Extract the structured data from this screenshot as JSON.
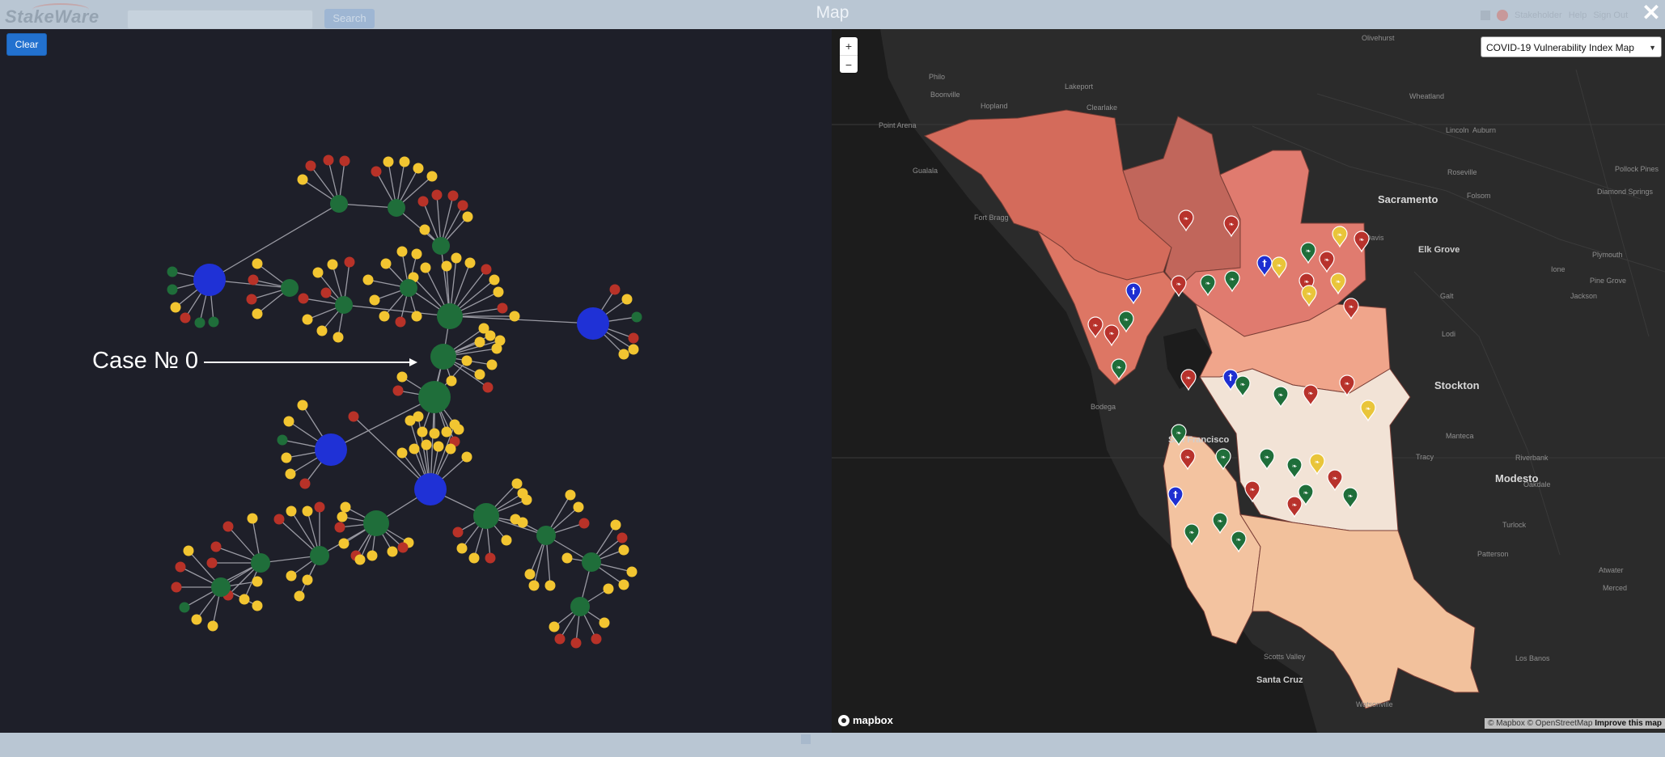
{
  "app": {
    "logo": "StakeWare",
    "search_button": "Search"
  },
  "header": {
    "user_menu": "Stakeholder",
    "help": "Help",
    "sign_out": "Sign Out"
  },
  "modal": {
    "title": "Map",
    "close_icon": "close-x-icon"
  },
  "graph": {
    "clear_label": "Clear",
    "case_label": "Case № 0",
    "colors": {
      "hub": "#1f31d6",
      "green": "#1f6e3a",
      "red": "#b83228",
      "yellow": "#f2c531",
      "edge": "#9a9aa3"
    }
  },
  "map": {
    "layer_select": "COVID-19 Vulnerability Index Map",
    "zoom_in": "+",
    "zoom_out": "−",
    "mapbox_logo": "mapbox",
    "attribution": {
      "mapbox": "© Mapbox",
      "osm": "© OpenStreetMap",
      "improve": "Improve this map"
    },
    "cities_major": [
      "Sacramento",
      "Stockton",
      "Modesto",
      "Elk Grove",
      "San Francisco",
      "Santa Cruz"
    ],
    "cities_minor": [
      "Olivehurst",
      "Philo",
      "Boonville",
      "Lakeport",
      "Hopland",
      "Clearlake",
      "Wheatland",
      "Lincoln",
      "Auburn",
      "Point Arena",
      "Roseville",
      "Pollock Pines",
      "Folsom",
      "Diamond Springs",
      "Davis",
      "Plymouth",
      "Pine Grove",
      "Ione",
      "Jackson",
      "Galt",
      "Lodi",
      "Manteca",
      "Tracy",
      "Riverbank",
      "Oakdale",
      "Turlock",
      "Patterson",
      "Atwater",
      "Merced",
      "Los Banos",
      "Watsonville",
      "Scotts Valley",
      "Gualala",
      "Fort Bragg",
      "Bodega"
    ],
    "fill_colors": {
      "sonoma": "#d46b5b",
      "napa": "#c1665b",
      "solano_yolo": "#e07b6f",
      "marin": "#dd7664",
      "contra_costa": "#f0a58b",
      "alameda": "#f2e3d6",
      "san_mateo": "#f3c3a0",
      "santa_clara": "#f2c19c"
    },
    "marker_colors": {
      "red": "#b8322c",
      "green": "#1f6e3a",
      "yellow": "#e9c53a",
      "blue": "#1f2fd1"
    }
  }
}
